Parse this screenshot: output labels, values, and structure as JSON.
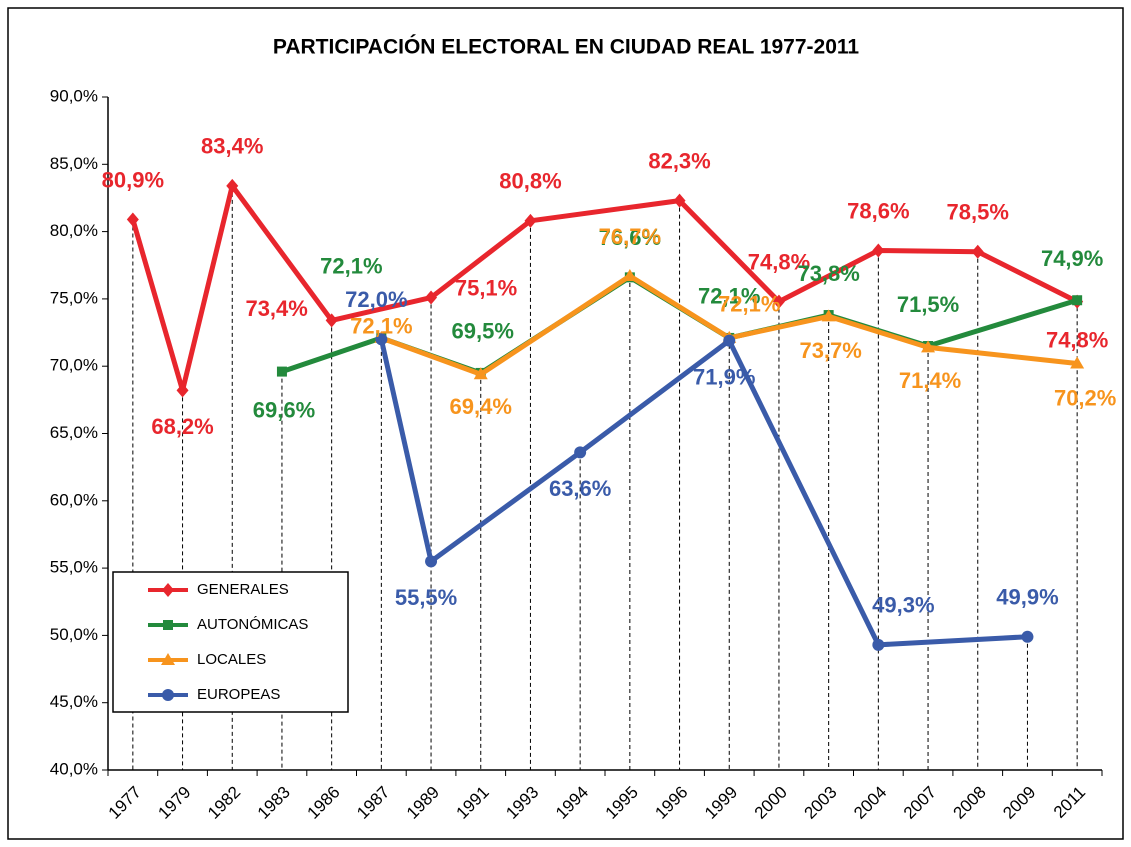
{
  "chart_data": {
    "type": "line",
    "title": "PARTICIPACIÓN ELECTORAL EN CIUDAD REAL 1977-2011",
    "categories": [
      "1977",
      "1979",
      "1982",
      "1983",
      "1986",
      "1987",
      "1989",
      "1991",
      "1993",
      "1994",
      "1995",
      "1996",
      "1999",
      "2000",
      "2003",
      "2004",
      "2007",
      "2008",
      "2009",
      "2011"
    ],
    "ylim": [
      40,
      90
    ],
    "yticks": [
      {
        "value": 40,
        "label": "40,0%"
      },
      {
        "value": 45,
        "label": "45,0%"
      },
      {
        "value": 50,
        "label": "50,0%"
      },
      {
        "value": 55,
        "label": "55,0%"
      },
      {
        "value": 60,
        "label": "60,0%"
      },
      {
        "value": 65,
        "label": "65,0%"
      },
      {
        "value": 70,
        "label": "70,0%"
      },
      {
        "value": 75,
        "label": "75,0%"
      },
      {
        "value": 80,
        "label": "80,0%"
      },
      {
        "value": 85,
        "label": "85,0%"
      },
      {
        "value": 90,
        "label": "90,0%"
      }
    ],
    "span_gaps": true,
    "legend": "lower left",
    "drop_lines": true,
    "series": [
      {
        "name": "GENERALES",
        "color": "#e8262d",
        "marker": "diamond",
        "values": [
          80.9,
          68.2,
          83.4,
          null,
          73.4,
          null,
          75.1,
          null,
          80.8,
          null,
          null,
          82.3,
          null,
          74.8,
          null,
          78.6,
          null,
          78.5,
          null,
          74.8
        ],
        "value_labels": [
          "80,9%",
          "68,2%",
          "83,4%",
          null,
          "73,4%",
          null,
          "75,1%",
          null,
          "80,8%",
          null,
          null,
          "82,3%",
          null,
          "74,8%",
          null,
          "78,6%",
          null,
          "78,5%",
          null,
          "74,8%"
        ]
      },
      {
        "name": "AUTONÓMICAS",
        "color": "#238a3c",
        "marker": "square",
        "values": [
          null,
          null,
          null,
          69.6,
          null,
          72.1,
          null,
          69.5,
          null,
          null,
          76.6,
          null,
          72.1,
          null,
          73.8,
          null,
          71.5,
          null,
          null,
          74.9
        ],
        "value_labels": [
          null,
          null,
          null,
          "69,6%",
          null,
          "72,1%",
          null,
          "69,5%",
          null,
          null,
          "76,6%",
          null,
          "72,1%",
          null,
          "73,8%",
          null,
          "71,5%",
          null,
          null,
          "74,9%"
        ]
      },
      {
        "name": "LOCALES",
        "color": "#f7941d",
        "marker": "triangle",
        "values": [
          null,
          null,
          null,
          null,
          null,
          72.1,
          null,
          69.4,
          null,
          null,
          76.7,
          null,
          72.1,
          null,
          73.7,
          null,
          71.4,
          null,
          null,
          70.2
        ],
        "value_labels": [
          null,
          null,
          null,
          null,
          null,
          "72,1%",
          null,
          "69,4%",
          null,
          null,
          "76,7%",
          null,
          "72,1%",
          null,
          "73,7%",
          null,
          "71,4%",
          null,
          null,
          "70,2%"
        ]
      },
      {
        "name": "EUROPEAS",
        "color": "#3a5ba9",
        "marker": "circle",
        "values": [
          null,
          null,
          null,
          null,
          null,
          72.0,
          55.5,
          null,
          null,
          63.6,
          null,
          null,
          71.9,
          null,
          null,
          49.3,
          null,
          null,
          49.9,
          null
        ],
        "value_labels": [
          null,
          null,
          null,
          null,
          null,
          "72,0%",
          "55,5%",
          null,
          null,
          "63,6%",
          null,
          null,
          "71,9%",
          null,
          null,
          "49,3%",
          null,
          null,
          "49,9%",
          null
        ]
      }
    ]
  }
}
